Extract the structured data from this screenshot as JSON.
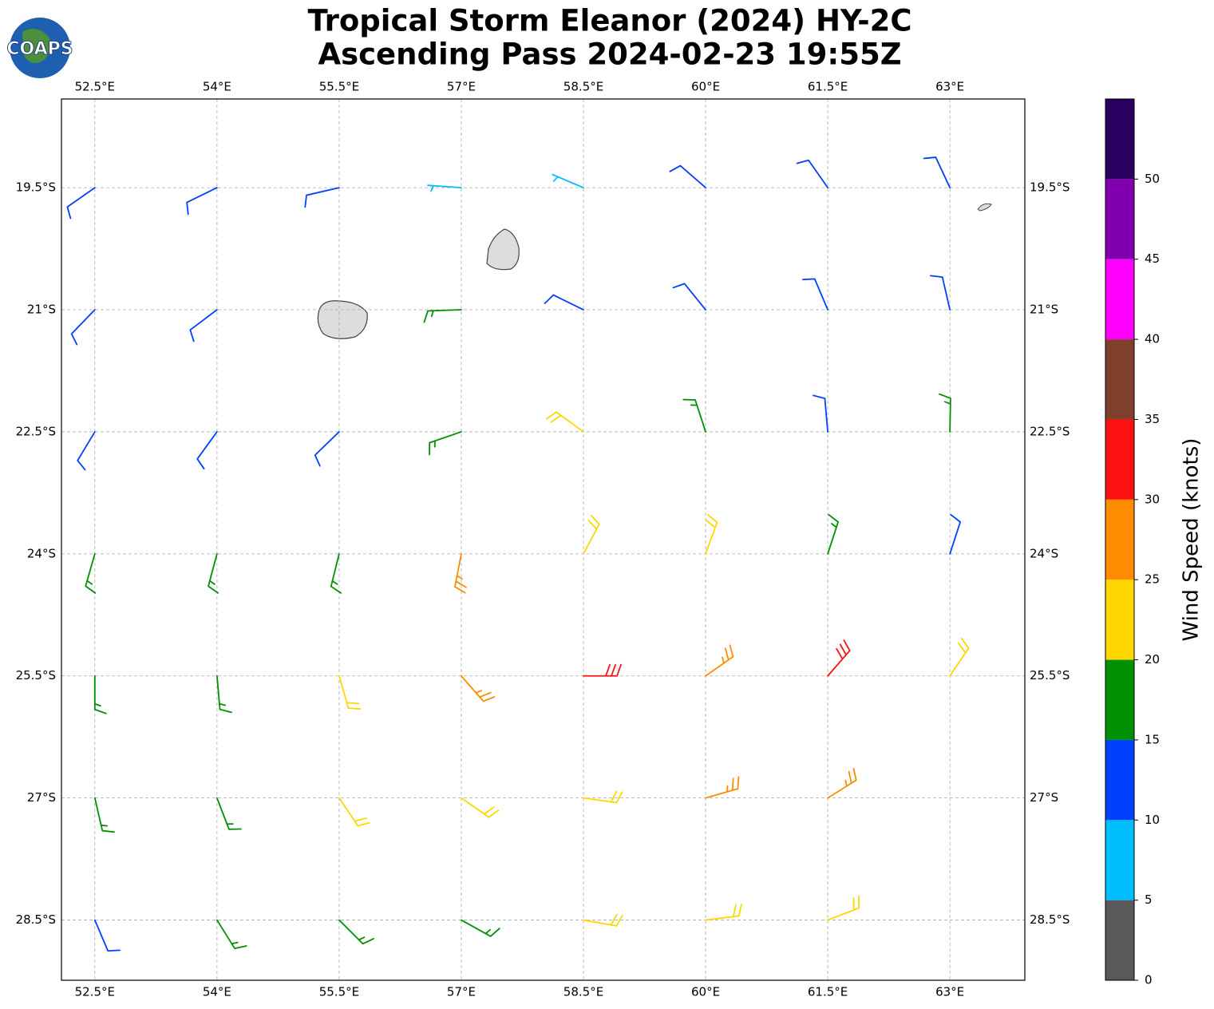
{
  "chart_data": {
    "type": "wind_barbs",
    "title": "Tropical Storm Eleanor (2024) HY-2C",
    "subtitle": "Ascending Pass 2024-02-23 19:55Z",
    "logo": "COAPS",
    "xlim": [
      52.09,
      63.92
    ],
    "ylim": [
      -29.24,
      -18.41
    ],
    "xticks": [
      {
        "value": 52.5,
        "label": "52.5°E"
      },
      {
        "value": 54,
        "label": "54°E"
      },
      {
        "value": 55.5,
        "label": "55.5°E"
      },
      {
        "value": 57,
        "label": "57°E"
      },
      {
        "value": 58.5,
        "label": "58.5°E"
      },
      {
        "value": 60,
        "label": "60°E"
      },
      {
        "value": 61.5,
        "label": "61.5°E"
      },
      {
        "value": 63,
        "label": "63°E"
      }
    ],
    "yticks": [
      {
        "value": -19.5,
        "label": "19.5°S"
      },
      {
        "value": -21,
        "label": "21°S"
      },
      {
        "value": -22.5,
        "label": "22.5°S"
      },
      {
        "value": -24,
        "label": "24°S"
      },
      {
        "value": -25.5,
        "label": "25.5°S"
      },
      {
        "value": -27,
        "label": "27°S"
      },
      {
        "value": -28.5,
        "label": "28.5°S"
      }
    ],
    "grid": true,
    "wind": {
      "lons": [
        52.5,
        54,
        55.5,
        57,
        58.5,
        60,
        61.5,
        63
      ],
      "lats": [
        -19.5,
        -21,
        -22.5,
        -24,
        -25.5,
        -27,
        -28.5
      ],
      "speeds": [
        [
          12,
          12,
          12,
          8,
          8,
          10,
          12,
          12
        ],
        [
          12,
          12,
          null,
          16,
          13,
          14,
          13,
          12
        ],
        [
          13,
          13,
          14,
          17,
          22,
          18,
          14,
          16
        ],
        [
          16,
          17,
          19,
          26,
          21,
          24,
          17,
          13
        ],
        [
          17,
          19,
          22,
          27,
          31,
          29,
          32,
          24
        ],
        [
          16,
          18,
          20,
          23,
          24,
          27,
          26,
          null
        ],
        [
          14,
          16,
          18,
          19,
          22,
          21,
          22,
          null
        ]
      ],
      "directions": [
        [
          55,
          64,
          77,
          94,
          113,
          131,
          145,
          155
        ],
        [
          44,
          53,
          null,
          88,
          116,
          141,
          157,
          167
        ],
        [
          31,
          36,
          46,
          71,
          126,
          162,
          175,
          181
        ],
        [
          16,
          15,
          14,
          11,
          208,
          200,
          198,
          198
        ],
        [
          0,
          355,
          344,
          319,
          270,
          235,
          221,
          214
        ],
        [
          347,
          339,
          326,
          305,
          278,
          254,
          238,
          null
        ],
        [
          337,
          328,
          315,
          299,
          280,
          263,
          249,
          null
        ]
      ]
    },
    "colorbar": {
      "label": "Wind Speed (knots)",
      "lim": [
        0,
        55
      ],
      "bounds": [
        0,
        5,
        10,
        15,
        20,
        25,
        30,
        35,
        40,
        45,
        50,
        55
      ],
      "colors": [
        "#595959",
        "#00bfff",
        "#0040ff",
        "#009000",
        "#ffd700",
        "#ff8c00",
        "#ff1010",
        "#803f2a",
        "#ff00ff",
        "#8000b0",
        "#2a0060"
      ],
      "ticks": [
        0,
        5,
        10,
        15,
        20,
        25,
        30,
        35,
        40,
        45,
        50
      ]
    }
  }
}
